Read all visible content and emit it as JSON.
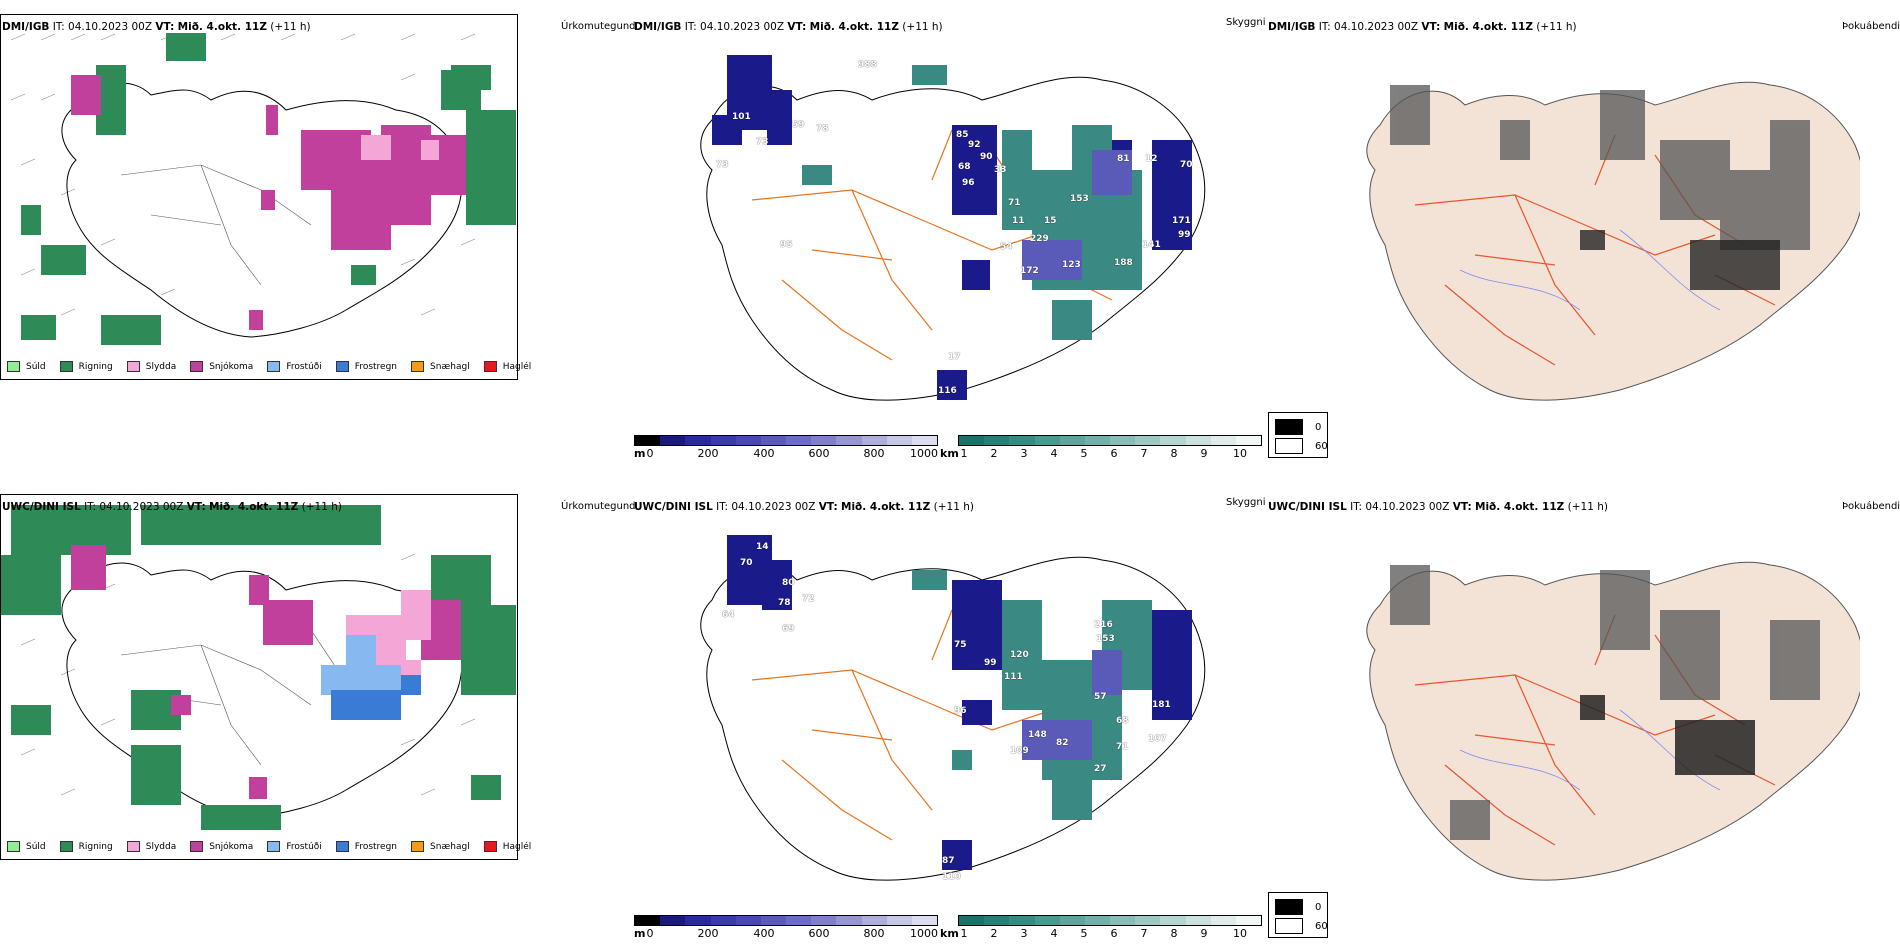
{
  "rows": [
    {
      "model": "DMI/IGB",
      "it_label": "IT:",
      "it_value": "04.10.2023 00Z",
      "vt_label": "VT:",
      "vt_value": "Mið. 4.okt. 11Z",
      "lead": "(+11 h)",
      "panel_names": [
        "Úrkomutegund",
        "Skyggni",
        "Þokuábendi"
      ]
    },
    {
      "model": "UWC/DINI ISL",
      "it_label": "IT:",
      "it_value": "04.10.2023 00Z",
      "vt_label": "VT:",
      "vt_value": "Mið. 4.okt. 11Z",
      "lead": "(+11 h)",
      "panel_names": [
        "Úrkomutegund",
        "Skyggni",
        "Þokuábendi"
      ]
    }
  ],
  "precip_legend": [
    {
      "label": "Súld",
      "color": "#90ee90"
    },
    {
      "label": "Rigning",
      "color": "#2e8b57"
    },
    {
      "label": "Slydda",
      "color": "#f4a6d7"
    },
    {
      "label": "Snjókoma",
      "color": "#c0409b"
    },
    {
      "label": "Frostúði",
      "color": "#87b8f0"
    },
    {
      "label": "Frostregn",
      "color": "#3a7bd5"
    },
    {
      "label": "Snæhagl",
      "color": "#f39c12"
    },
    {
      "label": "Haglél",
      "color": "#e31a1c"
    }
  ],
  "vis_m_bar": {
    "unit": "m",
    "ticks": [
      "0",
      "200",
      "400",
      "600",
      "800",
      "1000"
    ],
    "colors": [
      "#000000",
      "#1a1a7a",
      "#2a2a9a",
      "#3a3aa8",
      "#4848b0",
      "#5a5ab8",
      "#6c6cc0",
      "#8080c8",
      "#9696d2",
      "#aeaedd",
      "#c6c6e6",
      "#dcdcf0"
    ]
  },
  "vis_km_bar": {
    "unit": "km",
    "ticks": [
      "1",
      "2",
      "3",
      "4",
      "5",
      "6",
      "7",
      "8",
      "9",
      "10"
    ],
    "colors": [
      "#1f6f6a",
      "#2b7c76",
      "#3a8a83",
      "#4c988f",
      "#5fa59c",
      "#72b1a9",
      "#87bdb6",
      "#9dc9c3",
      "#b3d5d0",
      "#cae1de",
      "#e0ecea",
      "#f2f7f6"
    ]
  },
  "fog_legend": [
    {
      "label": "0",
      "color": "#000000"
    },
    {
      "label": "60",
      "color": "#ffffff"
    }
  ],
  "vis_labels": [
    [
      "988",
      "59",
      "78",
      "101",
      "73",
      "85",
      "92",
      "96",
      "68",
      "90",
      "33",
      "71",
      "153",
      "81",
      "12",
      "70",
      "11",
      "15",
      "229",
      "171",
      "123",
      "188",
      "99",
      "54",
      "172",
      "141",
      "73",
      "116",
      "17",
      "95"
    ],
    [
      "14",
      "70",
      "80",
      "78",
      "72",
      "64",
      "69",
      "75",
      "99",
      "120",
      "111",
      "216",
      "153",
      "57",
      "148",
      "109",
      "181",
      "68",
      "107",
      "71",
      "82",
      "87",
      "110",
      "27",
      "96"
    ]
  ],
  "colors": {
    "rain": "#2e8b57",
    "snow": "#c0409b",
    "sleet": "#f4a6d7",
    "freezing_drizzle": "#87b8f0",
    "freezing_rain": "#3a7bd5",
    "drizzle": "#90ee90",
    "roads": "#e8741f",
    "land_tint": "#f3e3d6",
    "rivers": "#7d8cf0"
  }
}
